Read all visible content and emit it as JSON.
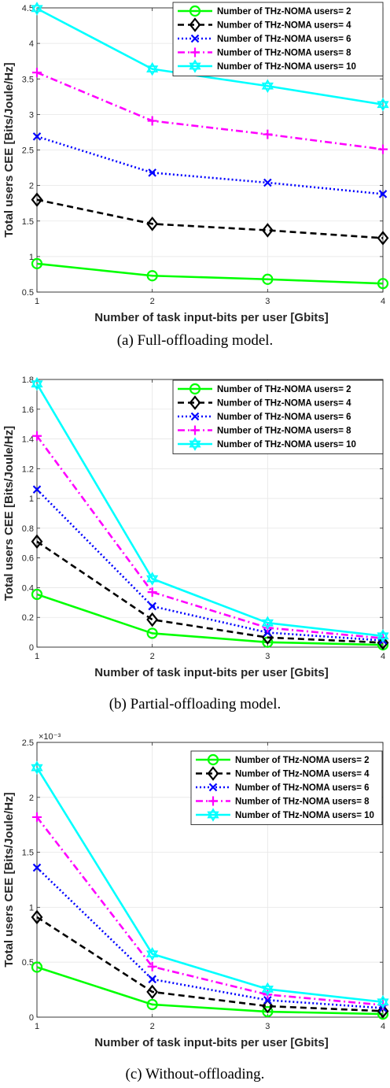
{
  "chart_data": [
    {
      "type": "line",
      "caption": "(a) Full-offloading model.",
      "xlabel": "Number of task input-bits per user [Gbits]",
      "ylabel": "Total users CEE [Bits/Joule/Hz]",
      "x": [
        1,
        2,
        3,
        4
      ],
      "xlim": [
        1,
        4
      ],
      "ylim": [
        0.5,
        4.5
      ],
      "xticks": [
        "1",
        "2",
        "3",
        "4"
      ],
      "yticks": [
        "0.5",
        "1",
        "1.5",
        "2",
        "2.5",
        "3",
        "3.5",
        "4",
        "4.5"
      ],
      "exponent_label": "",
      "grid": true,
      "legend_position": "top-right",
      "series": [
        {
          "name": "Number of THz-NOMA users= 2",
          "values": [
            0.9,
            0.73,
            0.68,
            0.62
          ]
        },
        {
          "name": "Number of THz-NOMA users= 4",
          "values": [
            1.8,
            1.46,
            1.37,
            1.26
          ]
        },
        {
          "name": "Number of THz-NOMA users= 6",
          "values": [
            2.69,
            2.18,
            2.04,
            1.88
          ]
        },
        {
          "name": "Number of THz-NOMA users= 8",
          "values": [
            3.59,
            2.91,
            2.72,
            2.51
          ]
        },
        {
          "name": "Number of THz-NOMA users= 10",
          "values": [
            4.49,
            3.64,
            3.4,
            3.14
          ]
        }
      ]
    },
    {
      "type": "line",
      "caption": "(b) Partial-offloading model.",
      "xlabel": "Number of task input-bits per user [Gbits]",
      "ylabel": "Total users CEE [Bits/Joule/Hz]",
      "x": [
        1,
        2,
        3,
        4
      ],
      "xlim": [
        1,
        4
      ],
      "ylim": [
        0,
        1.8
      ],
      "xticks": [
        "1",
        "2",
        "3",
        "4"
      ],
      "yticks": [
        "0",
        "0.2",
        "0.4",
        "0.6",
        "0.8",
        "1",
        "1.2",
        "1.4",
        "1.6",
        "1.8"
      ],
      "exponent_label": "",
      "grid": true,
      "legend_position": "top-right",
      "series": [
        {
          "name": "Number of THz-NOMA users= 2",
          "values": [
            0.355,
            0.093,
            0.033,
            0.015
          ]
        },
        {
          "name": "Number of THz-NOMA users= 4",
          "values": [
            0.71,
            0.185,
            0.065,
            0.03
          ]
        },
        {
          "name": "Number of THz-NOMA users= 6",
          "values": [
            1.06,
            0.275,
            0.098,
            0.045
          ]
        },
        {
          "name": "Number of THz-NOMA users= 8",
          "values": [
            1.42,
            0.37,
            0.13,
            0.06
          ]
        },
        {
          "name": "Number of THz-NOMA users= 10",
          "values": [
            1.77,
            0.46,
            0.163,
            0.075
          ]
        }
      ]
    },
    {
      "type": "line",
      "caption": "(c) Without-offloading.",
      "xlabel": "Number of task input-bits per user [Gbits]",
      "ylabel": "Total users CEE [Bits/Joule/Hz]",
      "x": [
        1,
        2,
        3,
        4
      ],
      "xlim": [
        1,
        4
      ],
      "ylim": [
        0,
        2.5
      ],
      "xticks": [
        "1",
        "2",
        "3",
        "4"
      ],
      "yticks": [
        "0",
        "0.5",
        "1",
        "1.5",
        "2",
        "2.5"
      ],
      "exponent_label": "×10⁻³",
      "grid": true,
      "legend_position": "top-right",
      "series": [
        {
          "name": "Number of THz-NOMA users= 2",
          "values": [
            0.455,
            0.115,
            0.05,
            0.028
          ]
        },
        {
          "name": "Number of THz-NOMA users= 4",
          "values": [
            0.91,
            0.23,
            0.1,
            0.055
          ]
        },
        {
          "name": "Number of THz-NOMA users= 6",
          "values": [
            1.36,
            0.345,
            0.155,
            0.083
          ]
        },
        {
          "name": "Number of THz-NOMA users= 8",
          "values": [
            1.82,
            0.46,
            0.205,
            0.11
          ]
        },
        {
          "name": "Number of THz-NOMA users= 10",
          "values": [
            2.27,
            0.575,
            0.255,
            0.138
          ]
        }
      ]
    }
  ],
  "style": {
    "colors": [
      "#00ff00",
      "#000000",
      "#0000ff",
      "#ff00ff",
      "#00ffff"
    ],
    "dash": [
      "solid",
      "dashed",
      "dotted",
      "dashdot",
      "solid"
    ],
    "markers": [
      "circle",
      "diamond",
      "x",
      "plus",
      "hexagram"
    ]
  }
}
